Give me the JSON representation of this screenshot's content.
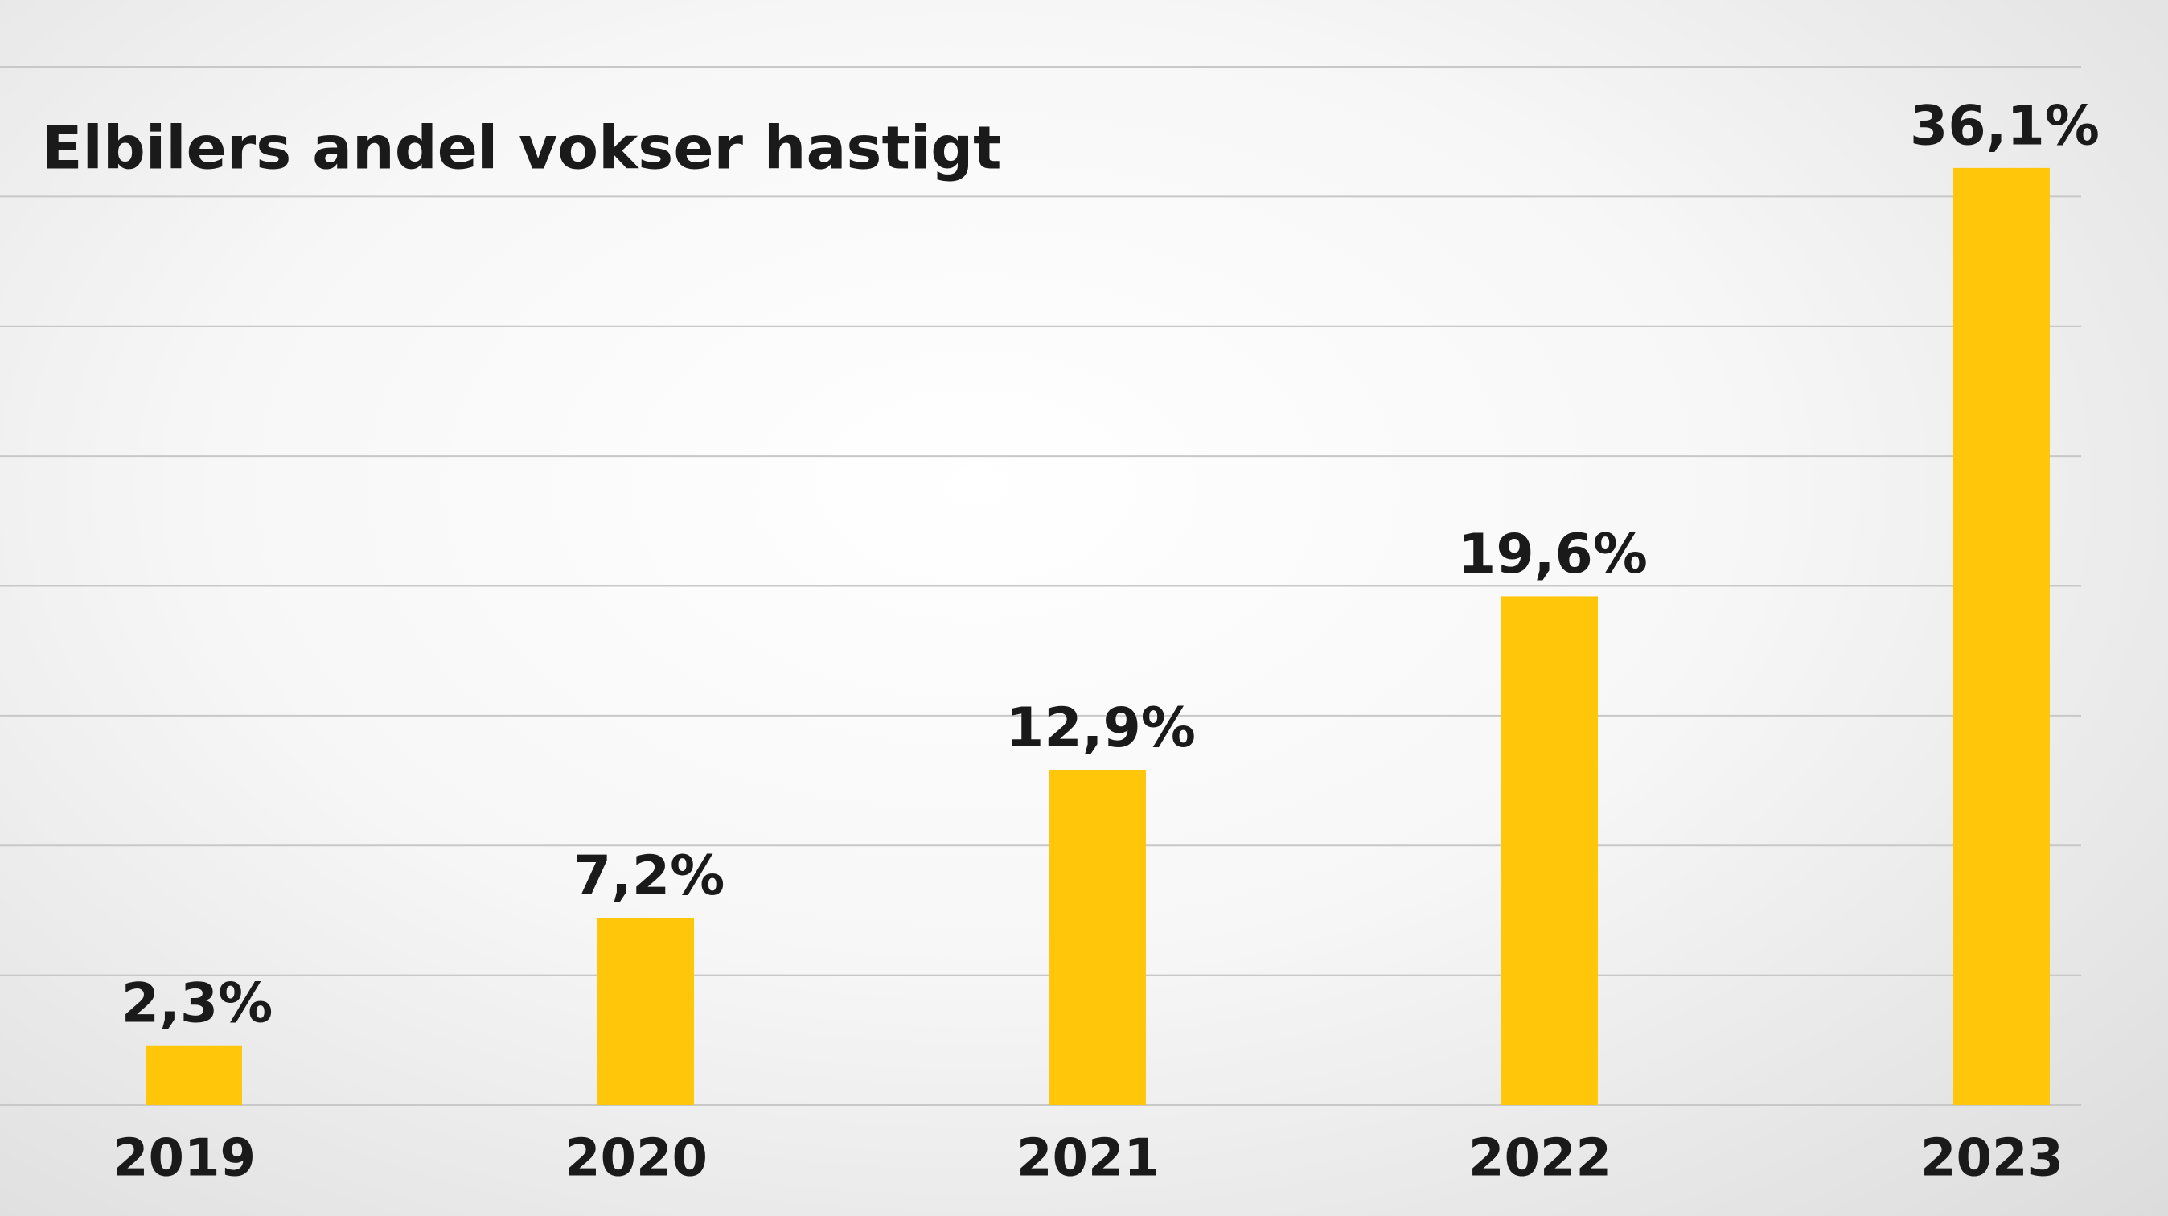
{
  "chart_data": {
    "type": "bar",
    "title": "Elbilers andel vokser hastigt",
    "categories": [
      "2019",
      "2020",
      "2021",
      "2022",
      "2023"
    ],
    "values": [
      2.3,
      7.2,
      12.9,
      19.6,
      36.1
    ],
    "value_labels": [
      "2,3%",
      "7,2%",
      "12,9%",
      "19,6%",
      "36,1%"
    ],
    "color": "#ffc60a",
    "ylim": [
      0,
      40
    ],
    "yticks": [
      0,
      5,
      10,
      15,
      20,
      25,
      30,
      35,
      40
    ],
    "grid": true
  }
}
